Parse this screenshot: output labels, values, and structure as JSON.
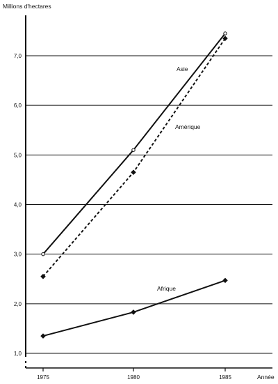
{
  "chart_data": {
    "type": "line",
    "title": "",
    "ylabel": "Millions d'hectares",
    "xlabel": "Année",
    "ylim": [
      1.0,
      7.6
    ],
    "grid": true,
    "x": [
      1975,
      1980,
      1985
    ],
    "x_tick_labels": [
      "1975",
      "1980",
      "1985"
    ],
    "y_ticks": [
      1.0,
      2.0,
      3.0,
      4.0,
      5.0,
      6.0,
      7.0
    ],
    "y_tick_labels": [
      "1,0",
      "2,0",
      "3,0",
      "4,0",
      "5,0",
      "6,0",
      "7,0"
    ],
    "series": [
      {
        "name": "Asie",
        "values": [
          3.0,
          5.1,
          7.45
        ],
        "style": "solid",
        "marker": "open-circle"
      },
      {
        "name": "Amérique",
        "values": [
          2.55,
          4.65,
          7.35
        ],
        "style": "dashed",
        "marker": "diamond"
      },
      {
        "name": "Afrique",
        "values": [
          1.35,
          1.83,
          2.47
        ],
        "style": "solid",
        "marker": "diamond"
      }
    ],
    "legend": "inline-labels"
  },
  "colors": {
    "ink": "#111111",
    "background": "#ffffff"
  }
}
